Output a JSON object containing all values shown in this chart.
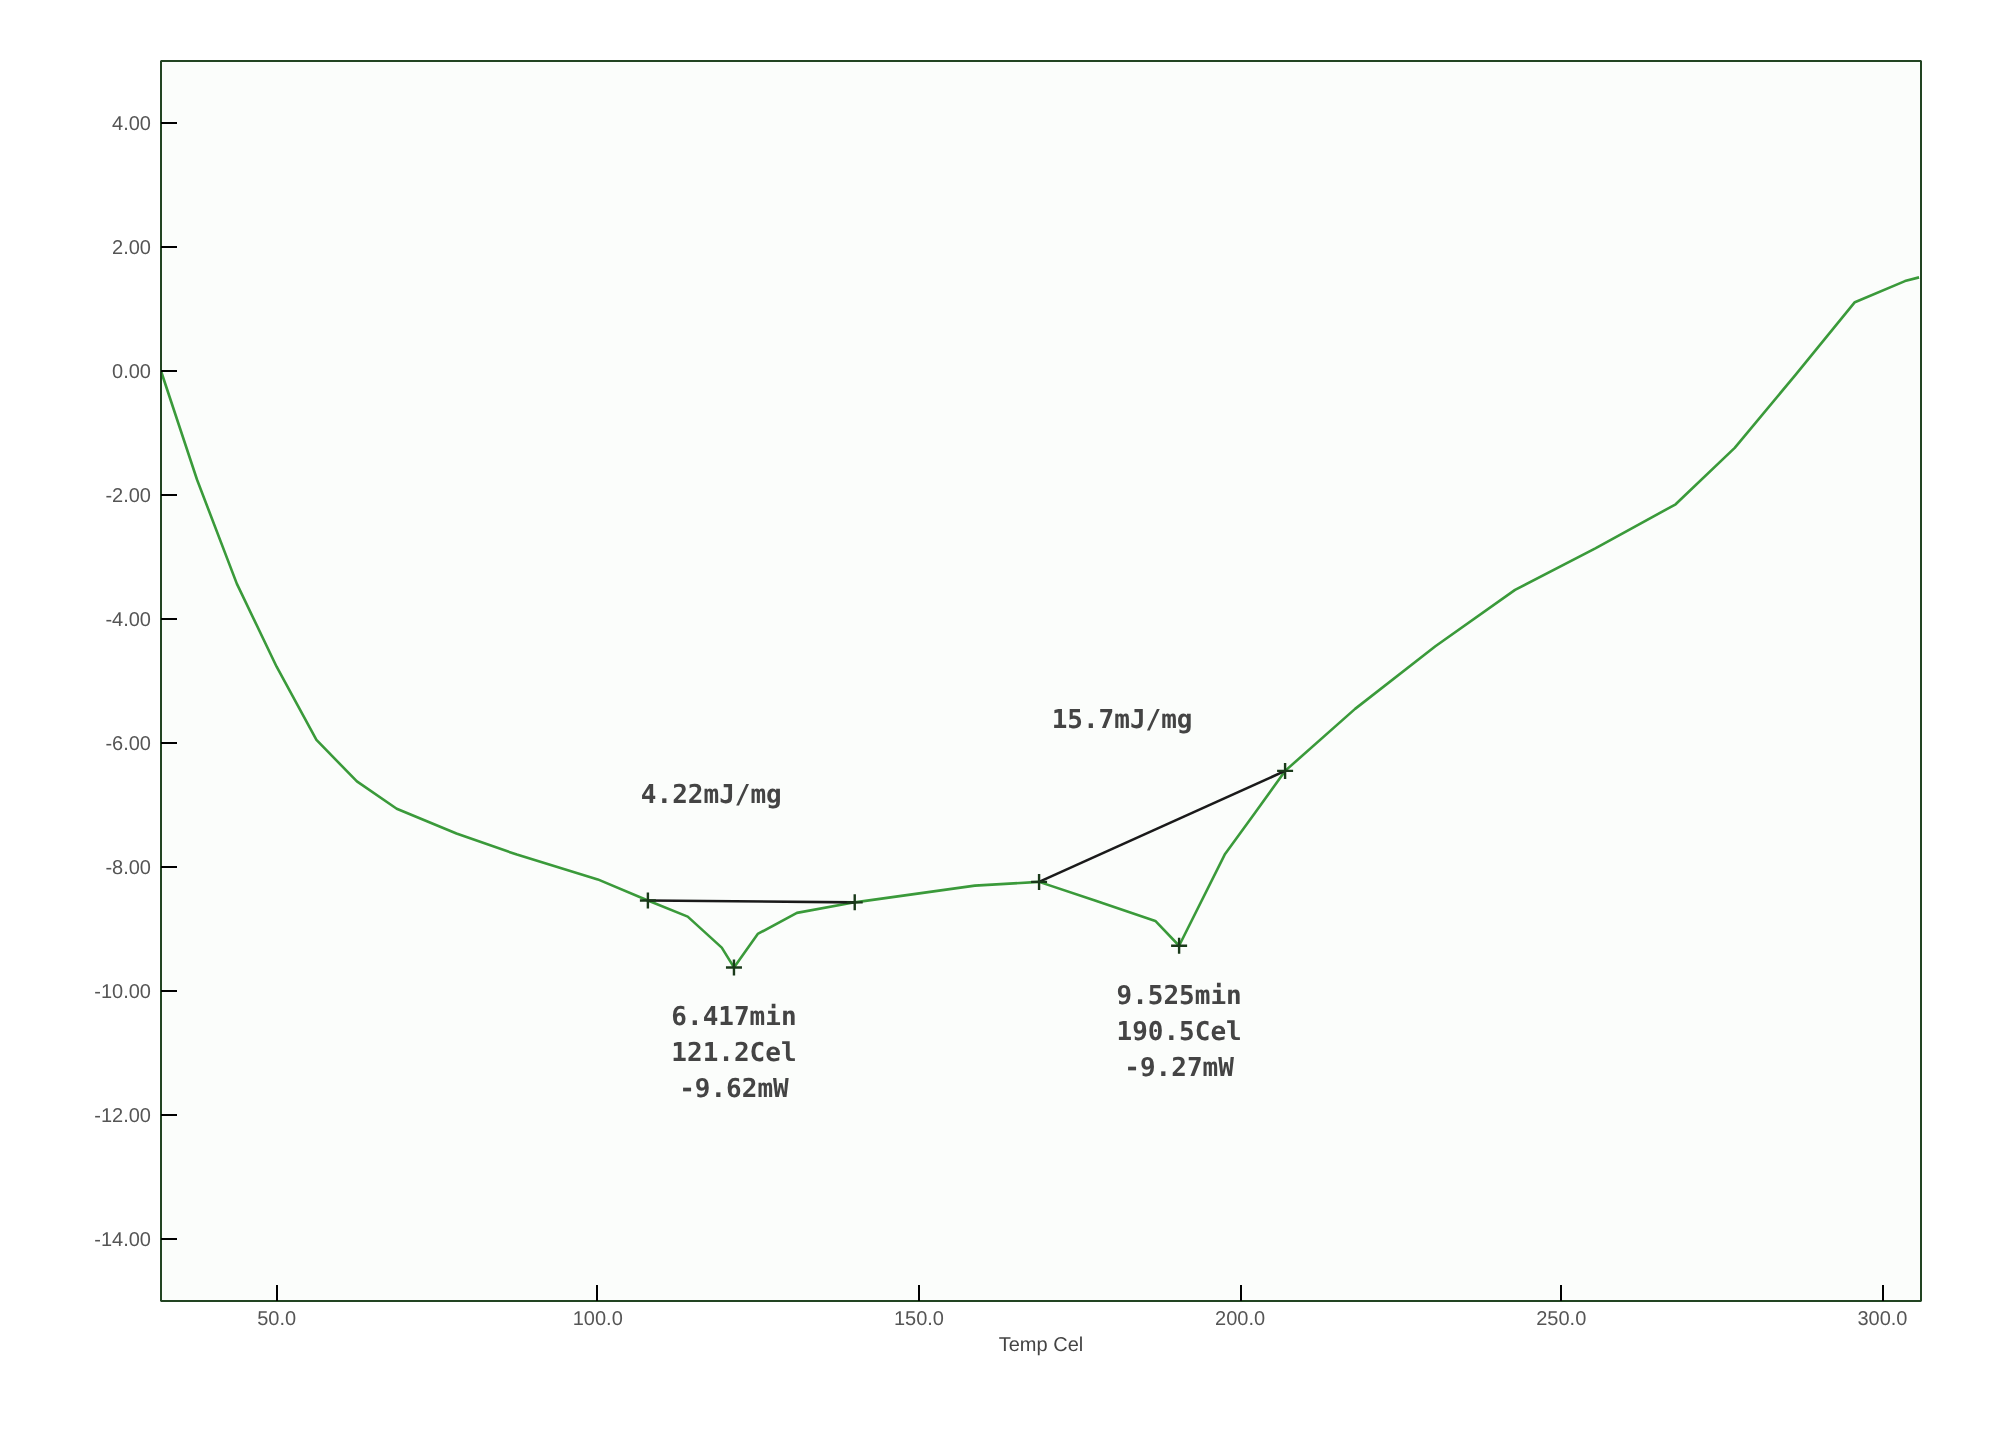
{
  "chart_data": {
    "type": "line",
    "xlabel": "Temp Cel",
    "xlim": [
      32,
      306
    ],
    "ylim": [
      -15,
      5
    ],
    "xticks": [
      {
        "value": 50,
        "label": "50.0"
      },
      {
        "value": 100,
        "label": "100.0"
      },
      {
        "value": 150,
        "label": "150.0"
      },
      {
        "value": 200,
        "label": "200.0"
      },
      {
        "value": 250,
        "label": "250.0"
      },
      {
        "value": 300,
        "label": "300.0"
      }
    ],
    "yticks": [
      {
        "value": 4,
        "label": "4.00"
      },
      {
        "value": 2,
        "label": "2.00"
      },
      {
        "value": 0,
        "label": "0.00"
      },
      {
        "value": -2,
        "label": "-2.00"
      },
      {
        "value": -4,
        "label": "-4.00"
      },
      {
        "value": -6,
        "label": "-6.00"
      },
      {
        "value": -8,
        "label": "-8.00"
      },
      {
        "value": -10,
        "label": "-10.00"
      },
      {
        "value": -12,
        "label": "-12.00"
      },
      {
        "value": -14,
        "label": "-14.00"
      }
    ],
    "grid": false,
    "series": [
      {
        "color": "#3a9a3a",
        "x": [
          32,
          37.6,
          43.8,
          50,
          56.2,
          62.5,
          68.7,
          78,
          87.4,
          100,
          107.8,
          114,
          119.3,
          121.2,
          124.9,
          131,
          140,
          158.7,
          168.7,
          177.4,
          186.8,
          190.5,
          197.6,
          202.3,
          207,
          217.9,
          230.4,
          242.8,
          255.3,
          267.8,
          277,
          286.4,
          295.7,
          303.5,
          305.7
        ],
        "values": [
          0,
          -1.75,
          -3.43,
          -4.77,
          -5.95,
          -6.62,
          -7.06,
          -7.46,
          -7.8,
          -8.2,
          -8.54,
          -8.8,
          -9.3,
          -9.62,
          -9.08,
          -8.74,
          -8.57,
          -8.3,
          -8.24,
          -8.54,
          -8.87,
          -9.27,
          -7.8,
          -7.13,
          -6.45,
          -5.45,
          -4.44,
          -3.53,
          -2.86,
          -2.15,
          -1.24,
          -0.07,
          1.11,
          1.45,
          1.51
        ]
      },
      {
        "color": "#1a1a1a",
        "x": [
          107.8,
          140
        ],
        "values": [
          -8.54,
          -8.57
        ]
      },
      {
        "color": "#1a1a1a",
        "x": [
          168.7,
          207
        ],
        "values": [
          -8.24,
          -6.45
        ]
      },
      {
        "type": "scatter",
        "marker": "cross",
        "color": "#1a3a1a",
        "x": [
          107.8,
          121.2,
          140,
          168.7,
          190.5,
          207
        ],
        "values": [
          -8.54,
          -9.62,
          -8.57,
          -8.24,
          -9.27,
          -6.45
        ]
      }
    ],
    "annotations": [
      "4.22mJ/mg",
      "15.7mJ/mg",
      {
        "text": "6.417min\n121.2Cel\n-9.62mW",
        "x": 121.2,
        "y": -9.62
      },
      {
        "text": "9.525min\n190.5Cel\n-9.27mW",
        "x": 190.5,
        "y": -9.27
      }
    ]
  }
}
